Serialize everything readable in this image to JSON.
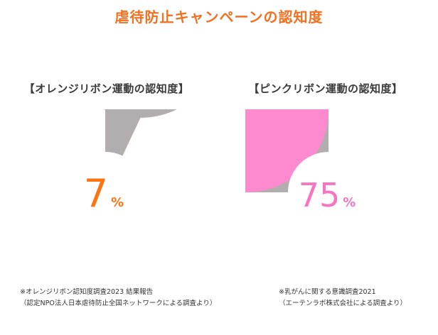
{
  "title": "虐待防止キャンペーンの認知度",
  "colors": {
    "title": "#f37021",
    "orange": "#fc7412",
    "pink": "#fd89cf",
    "gray": "#b2adae",
    "pink_text": "#f774c2"
  },
  "chart_data": [
    {
      "type": "pie",
      "title": "【オレンジリボン運動の認知度】",
      "value_label": "7",
      "unit": "%",
      "slices": [
        {
          "label": "認知",
          "value": 7,
          "color": "#fc7412"
        },
        {
          "label": "",
          "value": 93,
          "color": "#b2adae"
        }
      ],
      "source_lines": [
        "※オレンジリボン認知度調査2023 結果報告",
        "（認定NPO法人日本虐待防止全国ネットワークによる調査より）"
      ]
    },
    {
      "type": "pie",
      "title": "【ピンクリボン運動の認知度】",
      "value_label": "75",
      "unit": "%",
      "slices": [
        {
          "label": "認知",
          "value": 75,
          "color": "#fd89cf"
        },
        {
          "label": "",
          "value": 25,
          "color": "#b2adae"
        }
      ],
      "source_lines": [
        "※乳がんに関する意識調査2021",
        "（エーテンラボ株式会社による調査より）"
      ]
    }
  ]
}
